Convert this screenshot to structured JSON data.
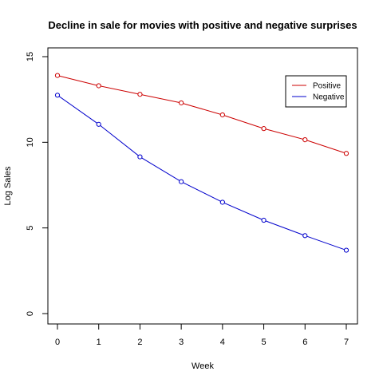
{
  "chart_data": {
    "type": "line",
    "title": "Decline in sale for movies with positive and negative surprises",
    "xlabel": "Week",
    "ylabel": "Log Sales",
    "x": [
      0,
      1,
      2,
      3,
      4,
      5,
      6,
      7
    ],
    "xlim": [
      0,
      7
    ],
    "ylim": [
      0,
      15
    ],
    "xticks": [
      0,
      1,
      2,
      3,
      4,
      5,
      6,
      7
    ],
    "yticks": [
      0,
      5,
      10,
      15
    ],
    "grid": false,
    "legend_position": "top-right",
    "series": [
      {
        "name": "Positive",
        "color": "#cc0000",
        "values": [
          13.9,
          13.3,
          12.8,
          12.3,
          11.6,
          10.8,
          10.15,
          9.35
        ]
      },
      {
        "name": "Negative",
        "color": "#0000cc",
        "values": [
          12.75,
          11.05,
          9.15,
          7.7,
          6.5,
          5.45,
          4.55,
          3.7
        ]
      }
    ]
  }
}
